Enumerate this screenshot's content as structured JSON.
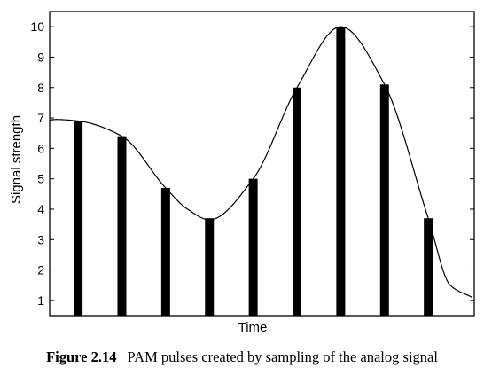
{
  "chart_data": {
    "type": "bar",
    "title": "",
    "xlabel": "Time",
    "ylabel": "Signal strength",
    "ylim": [
      0.5,
      10.5
    ],
    "yticks": [
      1,
      2,
      3,
      4,
      5,
      6,
      7,
      8,
      9,
      10
    ],
    "grid": false,
    "legend": "none",
    "series": [
      {
        "values": [
          6.9,
          6.4,
          4.7,
          3.7,
          5.0,
          8.0,
          10.0,
          8.1,
          3.7
        ]
      }
    ],
    "analog_signal": {
      "t": [
        0,
        0.5,
        1,
        2,
        3,
        3.5,
        4,
        5,
        6,
        7,
        8,
        9,
        9.5,
        10
      ],
      "y": [
        6.8,
        6.95,
        6.9,
        6.4,
        4.7,
        4.0,
        3.65,
        5.0,
        8.0,
        10.0,
        8.1,
        3.7,
        1.5,
        1.1
      ]
    },
    "bar_color": "#000000",
    "line_color": "#000000"
  },
  "caption": {
    "label": "Figure 2.14",
    "text": "PAM pulses created by sampling of the analog signal"
  }
}
